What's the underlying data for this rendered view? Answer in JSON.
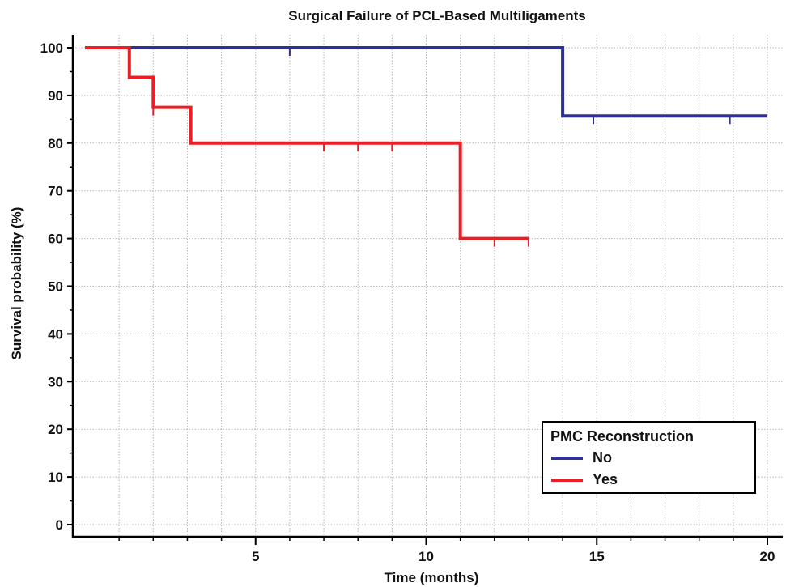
{
  "chart_data": {
    "type": "line",
    "step": true,
    "title": "Surgical Failure of PCL-Based Multiligaments",
    "xlabel": "Time (months)",
    "ylabel": "Survival probability (%)",
    "xlim": [
      0,
      20
    ],
    "ylim": [
      0,
      100
    ],
    "xticks": [
      5,
      10,
      15,
      20
    ],
    "xtick_labels": [
      "5",
      "10",
      "15",
      "20"
    ],
    "xminor_ticks": [
      1,
      2,
      3,
      4,
      5,
      6,
      7,
      8,
      9,
      10,
      11,
      12,
      13,
      14,
      15,
      16,
      17,
      18,
      19,
      20
    ],
    "yticks": [
      0,
      10,
      20,
      30,
      40,
      50,
      60,
      70,
      80,
      90,
      100
    ],
    "ytick_labels": [
      "0",
      "10",
      "20",
      "30",
      "40",
      "50",
      "60",
      "70",
      "80",
      "90",
      "100"
    ],
    "grid": true,
    "legend_title": "PMC  Reconstruction",
    "legend_position": "bottom-right",
    "series": [
      {
        "name": "No",
        "color": "#2e3192",
        "points": [
          [
            0,
            100
          ],
          [
            14,
            100
          ],
          [
            14,
            85.7
          ],
          [
            20,
            85.7
          ]
        ],
        "censored": [
          [
            6,
            100
          ],
          [
            14.9,
            85.7
          ],
          [
            18.9,
            85.7
          ]
        ]
      },
      {
        "name": "Yes",
        "color": "#ee1c25",
        "points": [
          [
            0,
            100
          ],
          [
            1.3,
            100
          ],
          [
            1.3,
            93.8
          ],
          [
            2,
            93.8
          ],
          [
            2,
            87.5
          ],
          [
            3.1,
            87.5
          ],
          [
            3.1,
            80
          ],
          [
            11,
            80
          ],
          [
            11,
            60
          ],
          [
            13,
            60
          ]
        ],
        "censored": [
          [
            2,
            87.5
          ],
          [
            7,
            80
          ],
          [
            8,
            80
          ],
          [
            9,
            80
          ],
          [
            12,
            60
          ],
          [
            13,
            60
          ]
        ]
      }
    ]
  }
}
